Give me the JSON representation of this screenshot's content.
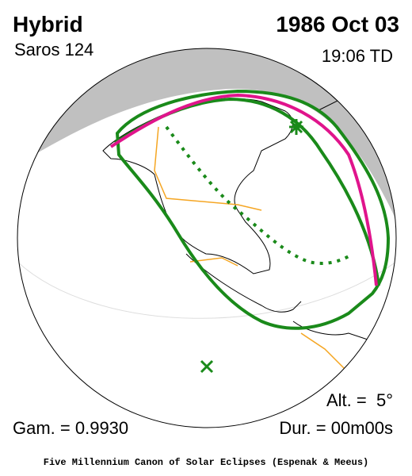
{
  "header": {
    "type": "Hybrid",
    "saros": "Saros 124",
    "date": "1986 Oct 03",
    "time": "19:06 TD"
  },
  "footer": {
    "altitude": "Alt. =  5°",
    "gamma": "Gam. = 0.9930",
    "duration": "Dur. = 00m00s",
    "credit": "Five Millennium Canon of Solar Eclipses (Espenak & Meeus)"
  }
}
